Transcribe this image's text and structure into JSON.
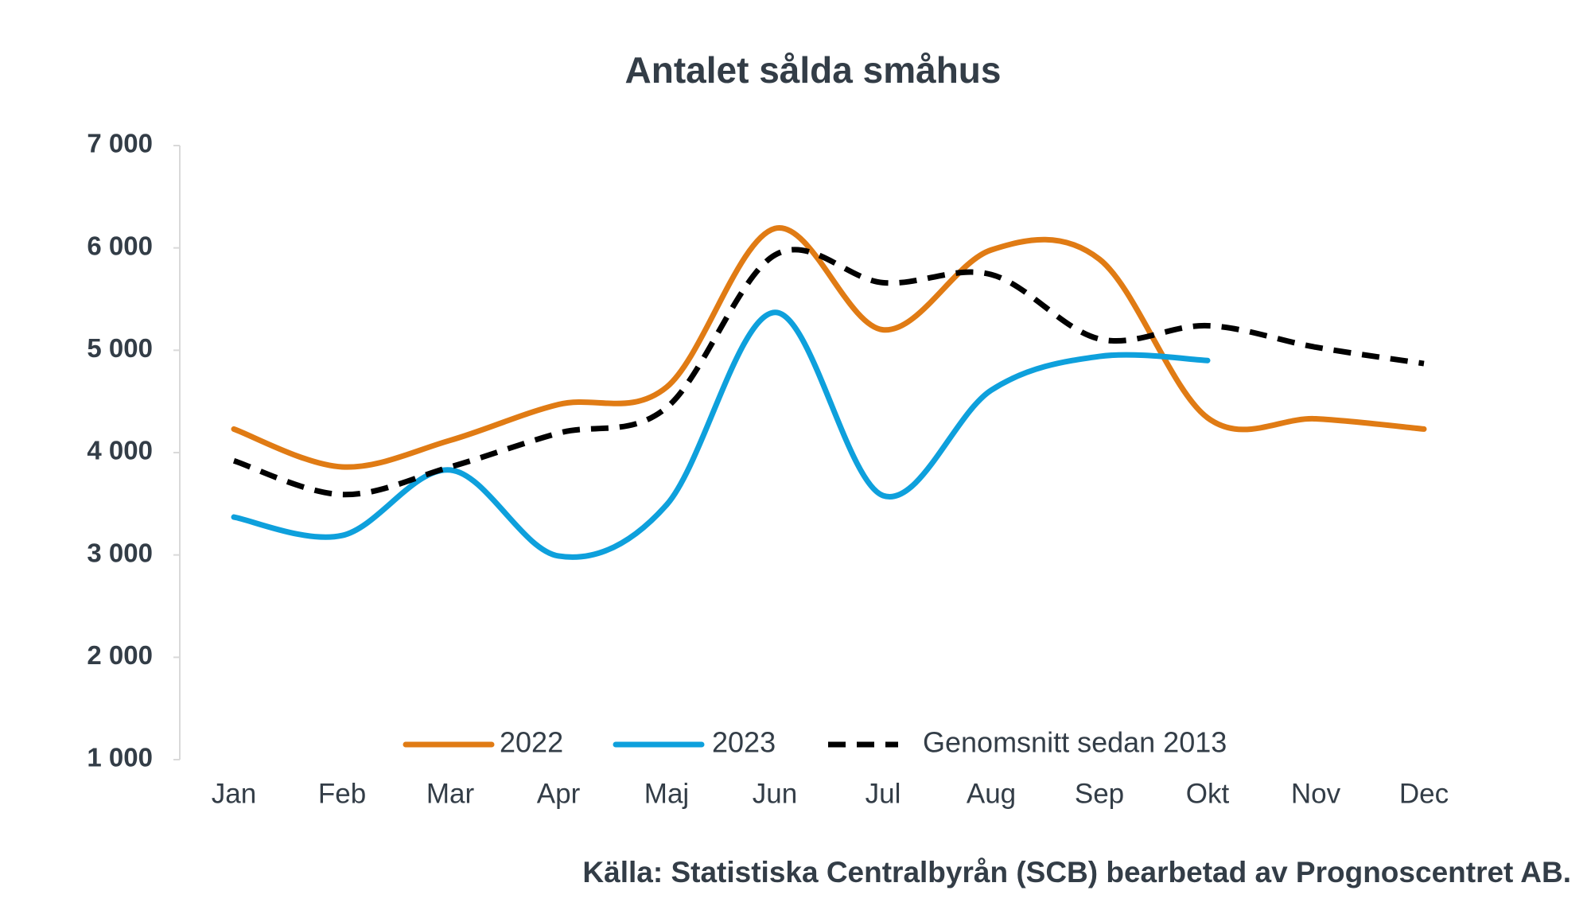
{
  "chart_data": {
    "type": "line",
    "title": "Antalet sålda småhus",
    "categories": [
      "Jan",
      "Feb",
      "Mar",
      "Apr",
      "Maj",
      "Jun",
      "Jul",
      "Aug",
      "Sep",
      "Okt",
      "Nov",
      "Dec"
    ],
    "series": [
      {
        "name": "2022",
        "color": "#e07b14",
        "dash": false,
        "values": [
          4230,
          3860,
          4120,
          4470,
          4640,
          6190,
          5200,
          5980,
          5890,
          4340,
          4330,
          4230
        ]
      },
      {
        "name": "2023",
        "color": "#0ea0dc",
        "dash": false,
        "values": [
          3370,
          3190,
          3830,
          2990,
          3490,
          5370,
          3580,
          4610,
          4940,
          4900,
          null,
          null
        ]
      },
      {
        "name": "Genomsnitt sedan 2013",
        "color": "#000000",
        "dash": true,
        "values": [
          3920,
          3590,
          3860,
          4190,
          4440,
          5930,
          5660,
          5740,
          5110,
          5240,
          5030,
          4870
        ]
      }
    ],
    "ylim": [
      1000,
      7000
    ],
    "yticks": [
      {
        "value": 1000,
        "label": "1 000"
      },
      {
        "value": 2000,
        "label": "2 000"
      },
      {
        "value": 3000,
        "label": "3 000"
      },
      {
        "value": 4000,
        "label": "4 000"
      },
      {
        "value": 5000,
        "label": "5 000"
      },
      {
        "value": 6000,
        "label": "6 000"
      },
      {
        "value": 7000,
        "label": "7 000"
      }
    ],
    "grid": false,
    "legend": "bottom",
    "source": "Källa: Statistiska Centralbyrån (SCB) bearbetad av Prognoscentret AB."
  }
}
